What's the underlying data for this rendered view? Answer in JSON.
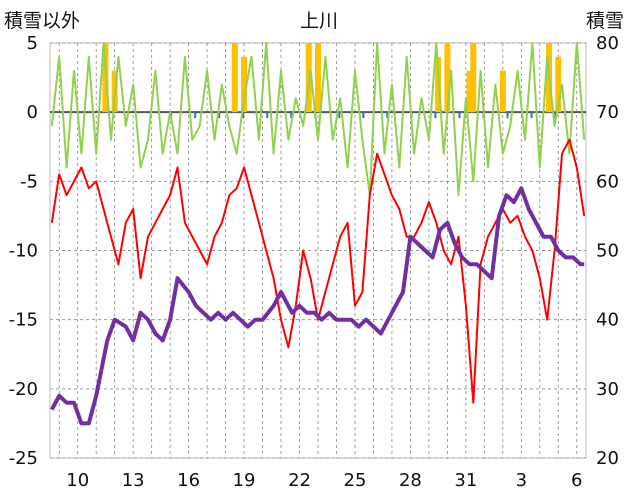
{
  "chart_data": {
    "type": "line",
    "title": "上川",
    "ylabel_left": "積雪以外",
    "ylabel_right": "積雪",
    "ylim_left": [
      -25,
      5
    ],
    "ylim_right": [
      20,
      80
    ],
    "left_ticks": [
      "5",
      "0",
      "-5",
      "-10",
      "-15",
      "-20",
      "-25"
    ],
    "right_ticks": [
      "80",
      "70",
      "60",
      "50",
      "40",
      "30",
      "20"
    ],
    "x_ticks": [
      "10",
      "13",
      "16",
      "19",
      "22",
      "25",
      "28",
      "31",
      "3",
      "6"
    ],
    "x_range_days": [
      8.5,
      37.5
    ],
    "colors": {
      "temperature": "#ff0000",
      "humidity_like": "#92d050",
      "precipitation": "#ffc000",
      "negative_bars": "#2e75b6",
      "snow_depth": "#7030a0"
    },
    "series": [
      {
        "key": "green_series",
        "x": [
          8.6,
          9.0,
          9.4,
          9.8,
          10.2,
          10.6,
          11.0,
          11.4,
          11.8,
          12.2,
          12.6,
          13.0,
          13.4,
          13.8,
          14.2,
          14.6,
          15.0,
          15.4,
          15.8,
          16.2,
          16.6,
          17.0,
          17.4,
          17.8,
          18.2,
          18.6,
          19.0,
          19.4,
          19.8,
          20.2,
          20.6,
          21.0,
          21.4,
          21.8,
          22.2,
          22.6,
          23.0,
          23.4,
          23.8,
          24.2,
          24.6,
          25.0,
          25.4,
          25.8,
          26.2,
          26.6,
          27.0,
          27.4,
          27.8,
          28.2,
          28.6,
          29.0,
          29.4,
          29.8,
          30.2,
          30.6,
          31.0,
          31.4,
          31.8,
          32.2,
          32.6,
          33.0,
          33.4,
          33.8,
          34.2,
          34.6,
          35.0,
          35.4,
          35.8,
          36.2,
          36.6,
          37.0,
          37.4
        ],
        "values": [
          -1,
          4,
          -4,
          3,
          -3,
          4,
          -3,
          5,
          -2,
          4,
          -1,
          2,
          -4,
          -2,
          3,
          -3,
          0,
          -3,
          4,
          -2,
          -1,
          3,
          -2,
          2,
          -1,
          -3,
          1,
          4,
          -2,
          5,
          -3,
          3,
          -2,
          1,
          -1,
          3,
          -2,
          4,
          -2,
          1,
          -4,
          3,
          -2,
          -6,
          5,
          -3,
          2,
          -4,
          4,
          -3,
          1,
          -2,
          5,
          -3,
          3,
          -6,
          1,
          -5,
          3,
          -4,
          2,
          -3,
          -1,
          3,
          -2,
          5,
          -4,
          4,
          -1,
          2,
          -3,
          5,
          -2
        ]
      },
      {
        "key": "red_series",
        "x": [
          8.6,
          9.0,
          9.4,
          9.8,
          10.2,
          10.6,
          11.0,
          11.4,
          11.8,
          12.2,
          12.6,
          13.0,
          13.4,
          13.8,
          14.2,
          14.6,
          15.0,
          15.4,
          15.8,
          16.2,
          16.6,
          17.0,
          17.4,
          17.8,
          18.2,
          18.6,
          19.0,
          19.4,
          19.8,
          20.2,
          20.6,
          21.0,
          21.4,
          21.8,
          22.2,
          22.6,
          23.0,
          23.4,
          23.8,
          24.2,
          24.6,
          25.0,
          25.4,
          25.8,
          26.2,
          26.6,
          27.0,
          27.4,
          27.8,
          28.2,
          28.6,
          29.0,
          29.4,
          29.8,
          30.2,
          30.6,
          31.0,
          31.4,
          31.8,
          32.2,
          32.6,
          33.0,
          33.4,
          33.8,
          34.2,
          34.6,
          35.0,
          35.4,
          35.8,
          36.2,
          36.6,
          37.0,
          37.4
        ],
        "values": [
          -8,
          -4.5,
          -6,
          -5,
          -4,
          -5.5,
          -5,
          -7,
          -9,
          -11,
          -8,
          -7,
          -12,
          -9,
          -8,
          -7,
          -6,
          -4,
          -8,
          -9,
          -10,
          -11,
          -9,
          -8,
          -6,
          -5.5,
          -4,
          -6,
          -8,
          -10,
          -12,
          -15,
          -17,
          -14,
          -10,
          -12,
          -15,
          -13,
          -11,
          -9,
          -8,
          -14,
          -13,
          -6,
          -3,
          -4.5,
          -6,
          -7,
          -9,
          -9,
          -8,
          -6.5,
          -8,
          -10,
          -11,
          -9,
          -14,
          -21,
          -11,
          -9,
          -8,
          -7,
          -8,
          -7.5,
          -9,
          -10,
          -12,
          -15,
          -10,
          -3,
          -2,
          -4,
          -7.5
        ]
      },
      {
        "key": "snow_depth",
        "x": [
          8.6,
          9.0,
          9.4,
          9.8,
          10.2,
          10.6,
          11.0,
          11.6,
          12.0,
          12.6,
          13.0,
          13.4,
          13.8,
          14.2,
          14.6,
          15.0,
          15.4,
          16.0,
          16.4,
          16.8,
          17.2,
          17.6,
          18.0,
          18.4,
          18.8,
          19.2,
          19.6,
          20.0,
          20.6,
          21.0,
          21.6,
          22.0,
          22.4,
          22.8,
          23.2,
          23.6,
          24.0,
          24.4,
          24.8,
          25.2,
          25.6,
          26.0,
          26.4,
          26.8,
          27.2,
          27.6,
          28.0,
          28.4,
          28.8,
          29.2,
          29.6,
          30.0,
          30.4,
          30.8,
          31.2,
          31.6,
          32.0,
          32.4,
          32.8,
          33.2,
          33.6,
          34.0,
          34.4,
          34.8,
          35.2,
          35.6,
          36.0,
          36.4,
          36.8,
          37.2,
          37.4
        ],
        "values": [
          27,
          29,
          28,
          28,
          25,
          25,
          29,
          37,
          40,
          39,
          37,
          41,
          40,
          38,
          37,
          40,
          46,
          44,
          42,
          41,
          40,
          41,
          40,
          41,
          40,
          39,
          40,
          40,
          42,
          44,
          41,
          42,
          41,
          41,
          40,
          41,
          40,
          40,
          40,
          39,
          40,
          39,
          38,
          40,
          42,
          44,
          52,
          51,
          50,
          49,
          53,
          54,
          51,
          49,
          48,
          48,
          47,
          46,
          55,
          58,
          57,
          59,
          56,
          54,
          52,
          52,
          50,
          49,
          49,
          48,
          48
        ]
      },
      {
        "key": "precipitation_bars",
        "x": [
          11.5,
          12.0,
          18.5,
          19.0,
          22.5,
          23.0,
          29.5,
          30.0,
          31.2,
          31.4,
          33.0,
          35.5,
          36.0
        ],
        "values": [
          5,
          3,
          5,
          4,
          5,
          5,
          4,
          5,
          3,
          5,
          3,
          5,
          4
        ]
      }
    ]
  }
}
